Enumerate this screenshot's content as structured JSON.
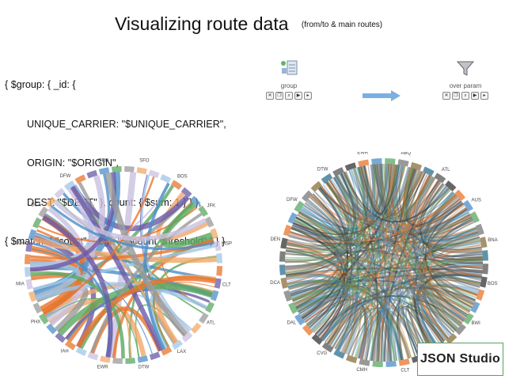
{
  "header": {
    "title": "Visualizing route data",
    "subtitle": "(from/to & main routes)"
  },
  "code_lines": [
    "{ $group: { _id: {",
    "        UNIQUE_CARRIER: \"$UNIQUE_CARRIER\",",
    "        ORIGIN: \"$ORIGIN\",",
    "        DEST: \"$DEST\" }, count: { $sum: 1 } } },",
    "{ $match: { \"count\": { $gt: \"$$count_threshold\" } } }"
  ],
  "pipeline": {
    "stage1": {
      "label": "group",
      "icon": "group-stage-icon"
    },
    "stage2": {
      "label": "over param",
      "icon": "filter-funnel-icon"
    }
  },
  "left_chord_labels": [
    "SFO",
    "BOS",
    "JFK",
    "MSP",
    "CLT",
    "ATL",
    "LAX",
    "DTW",
    "EWR",
    "IAH",
    "PHX",
    "MIA",
    "LGA",
    "DCA",
    "DFW",
    "ORD"
  ],
  "right_chord_labels": [
    "ABQ",
    "ATL",
    "AUS",
    "BNA",
    "BOS",
    "BWI",
    "CLE",
    "CLT",
    "CMH",
    "CVG",
    "DAL",
    "DCA",
    "DEN",
    "DFW",
    "DTW",
    "EWR"
  ],
  "brand": "JSON Studio",
  "colors": {
    "orange": "#e8742a",
    "purple": "#6a5aa8",
    "blue": "#4c8ec8",
    "green": "#5aa760",
    "gray": "#9a9a9a",
    "brand_border": "#55a35a"
  }
}
